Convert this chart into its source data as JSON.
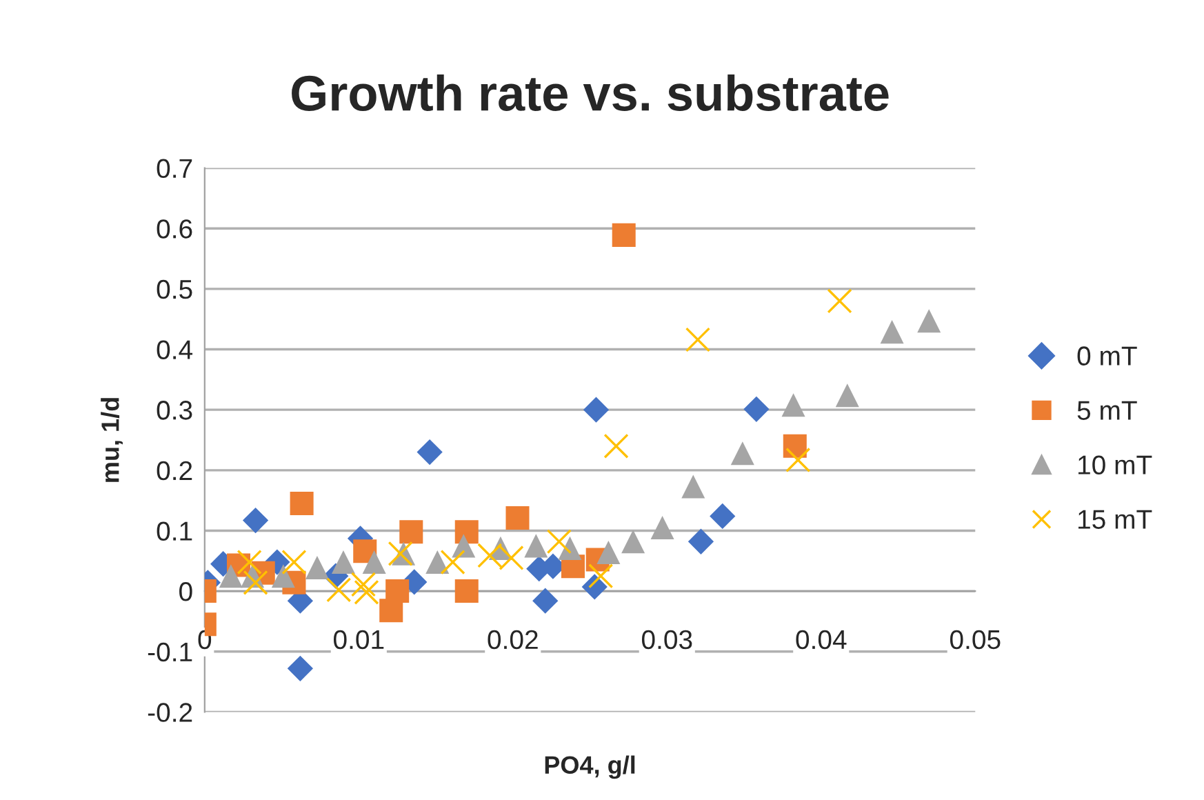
{
  "chart_data": {
    "type": "scatter",
    "title": "Growth rate vs. substrate",
    "xlabel": "PO4, g/l",
    "ylabel": "mu, 1/d",
    "xlim": [
      0,
      0.05
    ],
    "xticks": [
      0,
      0.01,
      0.02,
      0.03,
      0.04,
      0.05
    ],
    "ylim": [
      -0.2,
      0.7
    ],
    "yticks": [
      -0.2,
      -0.1,
      0,
      0.1,
      0.2,
      0.3,
      0.4,
      0.5,
      0.6,
      0.7
    ],
    "grid": "y",
    "legend": "right",
    "series": [
      {
        "name": "0 mT",
        "color": "#4472c4",
        "marker": "diamond",
        "x": [
          0.0002,
          0.0012,
          0.0033,
          0.0047,
          0.0062,
          0.0062,
          0.0085,
          0.0101,
          0.0136,
          0.0146,
          0.0217,
          0.0221,
          0.0226,
          0.0253,
          0.0254,
          0.0322,
          0.0336,
          0.0358
        ],
        "values": [
          0.014,
          0.045,
          0.117,
          0.048,
          -0.016,
          -0.128,
          0.025,
          0.087,
          0.015,
          0.23,
          0.037,
          -0.016,
          0.041,
          0.007,
          0.3,
          0.082,
          0.124,
          0.301
        ]
      },
      {
        "name": "5 mT",
        "color": "#ed7d31",
        "marker": "square",
        "x": [
          0,
          0,
          0.0022,
          0.0038,
          0.0058,
          0.0063,
          0.0104,
          0.0121,
          0.0125,
          0.0134,
          0.017,
          0.017,
          0.0203,
          0.0239,
          0.0255,
          0.0272,
          0.0383
        ],
        "values": [
          0,
          -0.055,
          0.043,
          0.03,
          0.014,
          0.145,
          0.066,
          -0.032,
          0,
          0.098,
          0.098,
          0,
          0.121,
          0.041,
          0.052,
          0.589,
          0.24
        ]
      },
      {
        "name": "10 mT",
        "color": "#a5a5a5",
        "marker": "triangle",
        "x": [
          0.0017,
          0.0031,
          0.0051,
          0.0073,
          0.009,
          0.011,
          0.0129,
          0.0151,
          0.0168,
          0.0192,
          0.0215,
          0.0237,
          0.0262,
          0.0278,
          0.0297,
          0.0317,
          0.0349,
          0.0382,
          0.0417,
          0.0446,
          0.047
        ],
        "values": [
          0.025,
          0.025,
          0.025,
          0.039,
          0.048,
          0.048,
          0.062,
          0.048,
          0.075,
          0.071,
          0.075,
          0.071,
          0.064,
          0.082,
          0.105,
          0.173,
          0.228,
          0.308,
          0.324,
          0.429,
          0.447
        ]
      },
      {
        "name": "15 mT",
        "color": "#ffc000",
        "marker": "cross",
        "x": [
          0.0029,
          0.0033,
          0.0058,
          0.0087,
          0.0103,
          0.0105,
          0.0127,
          0.0161,
          0.0185,
          0.0199,
          0.023,
          0.0257,
          0.0267,
          0.032,
          0.0385,
          0.0412
        ],
        "values": [
          0.048,
          0.014,
          0.048,
          0.002,
          0.011,
          -0.002,
          0.062,
          0.048,
          0.059,
          0.055,
          0.082,
          0.025,
          0.24,
          0.416,
          0.217,
          0.48
        ]
      }
    ]
  }
}
